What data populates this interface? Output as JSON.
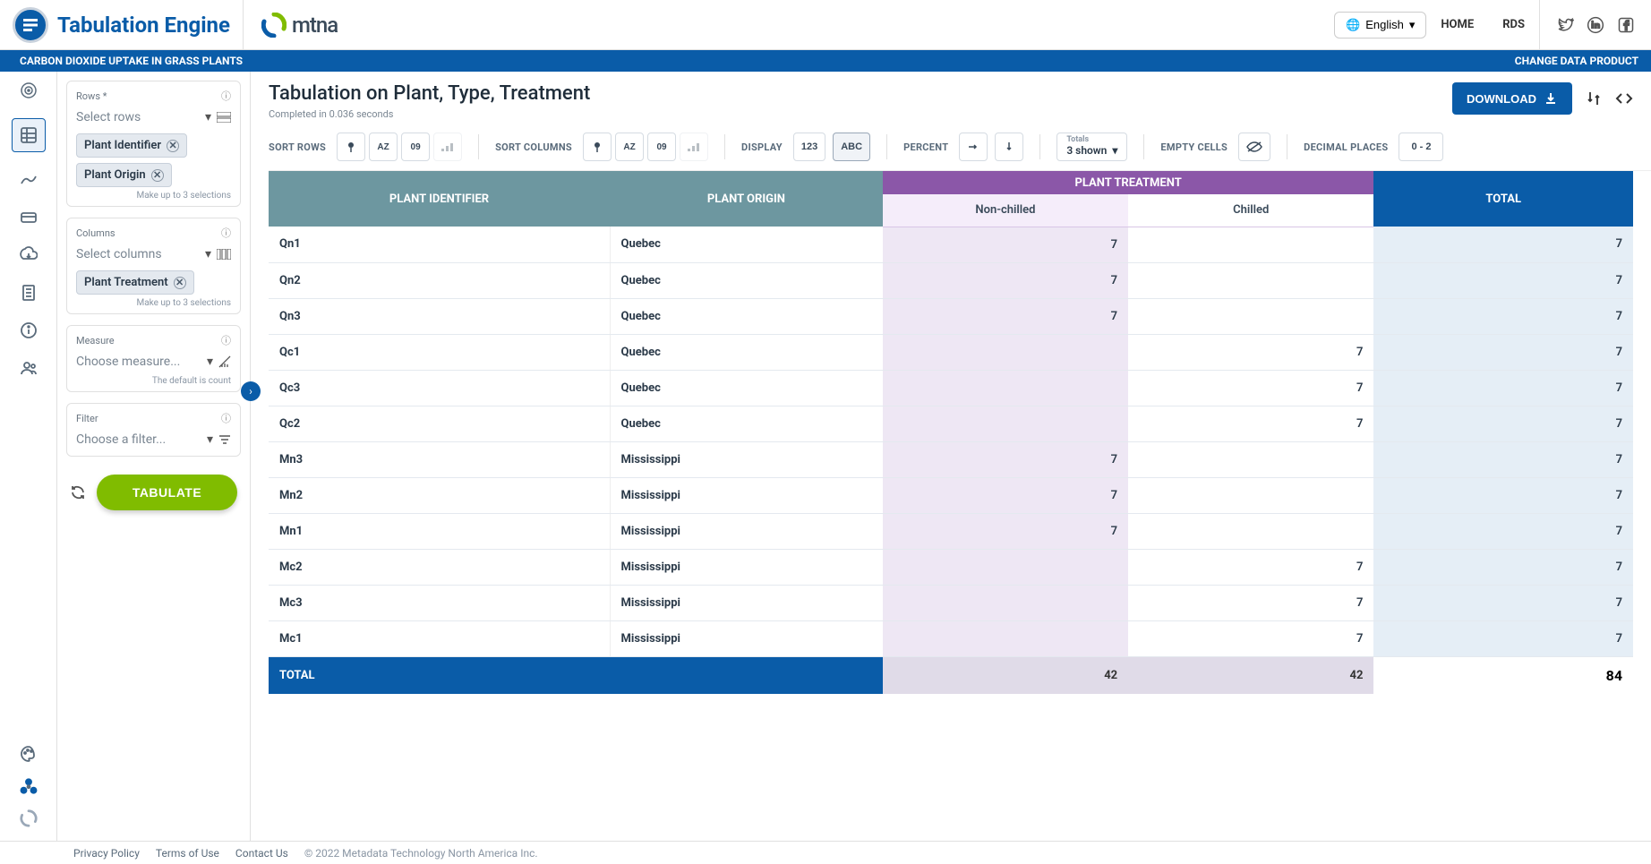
{
  "app": {
    "title": "Tabulation Engine",
    "partner": "mtna"
  },
  "topbar": {
    "language": "English",
    "links": [
      "HOME",
      "RDS"
    ]
  },
  "strip": {
    "product": "CARBON DIOXIDE UPTAKE IN GRASS PLANTS",
    "change": "CHANGE DATA PRODUCT"
  },
  "panel": {
    "rows": {
      "label": "Rows *",
      "placeholder": "Select rows",
      "chips": [
        "Plant Identifier",
        "Plant Origin"
      ],
      "helper": "Make up to 3 selections"
    },
    "columns": {
      "label": "Columns",
      "placeholder": "Select columns",
      "chips": [
        "Plant Treatment"
      ],
      "helper": "Make up to 3 selections"
    },
    "measure": {
      "label": "Measure",
      "placeholder": "Choose measure...",
      "helper": "The default is count"
    },
    "filter": {
      "label": "Filter",
      "placeholder": "Choose a filter..."
    },
    "tabulate": "TABULATE"
  },
  "main": {
    "title": "Tabulation on Plant, Type, Treatment",
    "subtitle": "Completed in 0.036 seconds",
    "download": "DOWNLOAD"
  },
  "toolbar": {
    "sort_rows": "SORT ROWS",
    "sort_columns": "SORT COLUMNS",
    "display": "DISPLAY",
    "display_123": "123",
    "display_abc": "ABC",
    "percent": "PERCENT",
    "totals_label": "Totals",
    "totals_value": "3 shown",
    "empty": "EMPTY CELLS",
    "decimals": "DECIMAL PLACES",
    "decimals_value": "0 - 2"
  },
  "table": {
    "row_headers": [
      "PLANT IDENTIFIER",
      "PLANT ORIGIN"
    ],
    "col_group": "PLANT TREATMENT",
    "col_headers": [
      "Non-chilled",
      "Chilled"
    ],
    "total": "TOTAL",
    "rows": [
      {
        "id": "Qn1",
        "origin": "Quebec",
        "nc": 7,
        "ch": null,
        "tot": 7
      },
      {
        "id": "Qn2",
        "origin": "Quebec",
        "nc": 7,
        "ch": null,
        "tot": 7
      },
      {
        "id": "Qn3",
        "origin": "Quebec",
        "nc": 7,
        "ch": null,
        "tot": 7
      },
      {
        "id": "Qc1",
        "origin": "Quebec",
        "nc": null,
        "ch": 7,
        "tot": 7
      },
      {
        "id": "Qc3",
        "origin": "Quebec",
        "nc": null,
        "ch": 7,
        "tot": 7
      },
      {
        "id": "Qc2",
        "origin": "Quebec",
        "nc": null,
        "ch": 7,
        "tot": 7
      },
      {
        "id": "Mn3",
        "origin": "Mississippi",
        "nc": 7,
        "ch": null,
        "tot": 7
      },
      {
        "id": "Mn2",
        "origin": "Mississippi",
        "nc": 7,
        "ch": null,
        "tot": 7
      },
      {
        "id": "Mn1",
        "origin": "Mississippi",
        "nc": 7,
        "ch": null,
        "tot": 7
      },
      {
        "id": "Mc2",
        "origin": "Mississippi",
        "nc": null,
        "ch": 7,
        "tot": 7
      },
      {
        "id": "Mc3",
        "origin": "Mississippi",
        "nc": null,
        "ch": 7,
        "tot": 7
      },
      {
        "id": "Mc1",
        "origin": "Mississippi",
        "nc": null,
        "ch": 7,
        "tot": 7
      }
    ],
    "totals": {
      "label": "TOTAL",
      "nc": 42,
      "ch": 42,
      "tot": 84
    }
  },
  "footer": {
    "links": [
      "Privacy Policy",
      "Terms of Use",
      "Contact Us"
    ],
    "copy": "© 2022 Metadata Technology North America Inc."
  },
  "colors": {
    "brand_blue": "#0a5ca8",
    "row_header_bg": "#6d97a0",
    "col_group_bg": "#8b57a8",
    "col_sub_bg": "#f5edfa",
    "total_cell_bg": "#e5eef6",
    "tabulate_green": "#80bc00"
  }
}
